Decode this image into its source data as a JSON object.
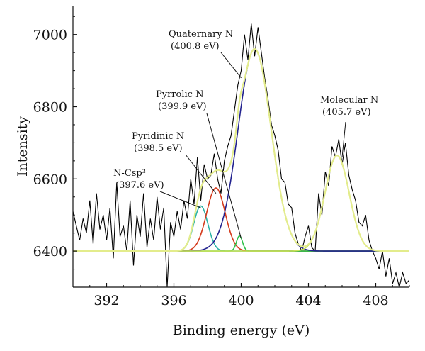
{
  "chart_data": {
    "type": "line",
    "title": "",
    "xlabel": "Binding energy (eV)",
    "ylabel": "Intensity",
    "xlim": [
      390,
      410
    ],
    "ylim": [
      6300,
      7080
    ],
    "x_ticks": [
      392,
      396,
      400,
      404,
      408
    ],
    "y_ticks": [
      6400,
      6600,
      6800,
      7000
    ],
    "grid": false,
    "legend": "none",
    "raw_spectrum": {
      "color": "#000000",
      "x": [
        390.0,
        390.2,
        390.4,
        390.6,
        390.8,
        391.0,
        391.2,
        391.4,
        391.6,
        391.8,
        392.0,
        392.2,
        392.4,
        392.6,
        392.8,
        393.0,
        393.2,
        393.4,
        393.6,
        393.8,
        394.0,
        394.2,
        394.4,
        394.6,
        394.8,
        395.0,
        395.2,
        395.4,
        395.6,
        395.8,
        396.0,
        396.2,
        396.4,
        396.6,
        396.8,
        397.0,
        397.2,
        397.4,
        397.6,
        397.8,
        398.0,
        398.2,
        398.4,
        398.6,
        398.8,
        399.0,
        399.2,
        399.4,
        399.6,
        399.8,
        400.0,
        400.2,
        400.4,
        400.6,
        400.8,
        401.0,
        401.2,
        401.4,
        401.6,
        401.8,
        402.0,
        402.2,
        402.4,
        402.6,
        402.8,
        403.0,
        403.2,
        403.4,
        403.6,
        403.8,
        404.0,
        404.2,
        404.4,
        404.6,
        404.8,
        405.0,
        405.2,
        405.4,
        405.6,
        405.8,
        406.0,
        406.2,
        406.4,
        406.6,
        406.8,
        407.0,
        407.2,
        407.4,
        407.6,
        407.8,
        408.0,
        408.2,
        408.4,
        408.6,
        408.8,
        409.0,
        409.2,
        409.4,
        409.6,
        409.8,
        410.0
      ],
      "y": [
        6510,
        6470,
        6430,
        6490,
        6450,
        6540,
        6420,
        6560,
        6460,
        6500,
        6430,
        6520,
        6380,
        6590,
        6440,
        6470,
        6400,
        6540,
        6360,
        6500,
        6440,
        6560,
        6410,
        6490,
        6430,
        6550,
        6460,
        6520,
        6300,
        6480,
        6440,
        6510,
        6460,
        6540,
        6490,
        6600,
        6530,
        6660,
        6540,
        6640,
        6600,
        6610,
        6670,
        6600,
        6560,
        6650,
        6690,
        6720,
        6790,
        6860,
        6900,
        7000,
        6930,
        7030,
        6940,
        7020,
        6950,
        6880,
        6820,
        6750,
        6720,
        6680,
        6600,
        6590,
        6530,
        6520,
        6450,
        6420,
        6400,
        6440,
        6470,
        6410,
        6400,
        6560,
        6500,
        6620,
        6580,
        6690,
        6660,
        6710,
        6640,
        6700,
        6610,
        6570,
        6540,
        6480,
        6470,
        6500,
        6430,
        6400,
        6380,
        6350,
        6400,
        6330,
        6380,
        6310,
        6340,
        6300,
        6340,
        6310,
        6320
      ]
    },
    "baseline": 6400,
    "components": [
      {
        "name": "N-Csp³ (397.6 eV)",
        "center": 397.6,
        "amplitude": 125,
        "sigma": 0.42,
        "color": "#2bb3a6"
      },
      {
        "name": "Pyridinic N (398.5 eV)",
        "center": 398.5,
        "amplitude": 175,
        "sigma": 0.55,
        "color": "#d43a1c"
      },
      {
        "name": "Pyrrolic N (399.9 eV)",
        "center": 399.9,
        "amplitude": 42,
        "sigma": 0.18,
        "color": "#2ec24a"
      },
      {
        "name": "Quaternary N (400.8 eV)",
        "center": 400.8,
        "amplitude": 560,
        "sigma": 0.98,
        "color": "#23238f"
      },
      {
        "name": "Molecular N (405.7 eV)",
        "center": 405.7,
        "amplitude": 265,
        "sigma": 0.72,
        "color": "#c9e25a"
      }
    ],
    "envelope": {
      "color": "#e3ec8c"
    },
    "annotations": [
      {
        "line1": "Quaternary N",
        "line2": "(400.8 eV)",
        "target_x": 400.0,
        "target_y": 6880
      },
      {
        "line1": "Pyrrolic N",
        "line2": "(399.9 eV)",
        "target_x": 400.0,
        "target_y": 6435
      },
      {
        "line1": "Pyridinic N",
        "line2": "(398.5 eV)",
        "target_x": 398.5,
        "target_y": 6560
      },
      {
        "line1": "N-Csp³",
        "line2": "(397.6 eV)",
        "target_x": 397.6,
        "target_y": 6520
      },
      {
        "line1": "Molecular N",
        "line2": "(405.7 eV)",
        "target_x": 406.0,
        "target_y": 6660
      }
    ]
  }
}
